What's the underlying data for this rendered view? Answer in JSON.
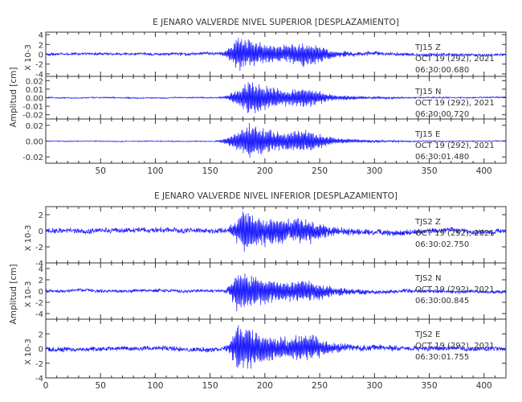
{
  "chart_data": [
    {
      "type": "line",
      "title": "E JENARO VALVERDE NIVEL SUPERIOR [DESPLAZAMIENTO]",
      "ylabel": "Amplitud [cm]",
      "xlim": [
        0,
        420
      ],
      "xticks": [
        "50",
        "100",
        "150",
        "200",
        "250",
        "300",
        "350",
        "400"
      ],
      "color": "#1c1cff",
      "grid": false,
      "traces": [
        {
          "station": "TJ15",
          "component": "Z",
          "date": "OCT 19 (292), 2021",
          "time": "06:30:00.680",
          "exponent": "X 10-3",
          "ylim": [
            -4.5,
            4.5
          ],
          "yticks": [
            "4",
            "2",
            "0",
            "-2",
            "-4"
          ],
          "envelope": {
            "onset": 155,
            "peak": 175,
            "peak_amp": 3.8,
            "noise": 0.3,
            "coda": 45,
            "secondary": {
              "center": 238,
              "amp": 1.5,
              "width": 18
            }
          }
        },
        {
          "station": "TJ15",
          "component": "N",
          "date": "OCT 19 (292), 2021",
          "time": "06:30:00.720",
          "exponent": "",
          "ylim": [
            -0.025,
            0.025
          ],
          "yticks": [
            "0.02",
            "0.01",
            "0.00",
            "-0.01",
            "-0.02"
          ],
          "envelope": {
            "onset": 155,
            "peak": 185,
            "peak_amp": 0.022,
            "noise": 0.0008,
            "coda": 40,
            "secondary": {
              "center": 240,
              "amp": 0.006,
              "width": 15
            }
          }
        },
        {
          "station": "TJ15",
          "component": "E",
          "date": "OCT 19 (292), 2021",
          "time": "06:30:01.480",
          "exponent": "",
          "ylim": [
            -0.028,
            0.028
          ],
          "yticks": [
            "0.02",
            "0.00",
            "-0.02"
          ],
          "envelope": {
            "onset": 150,
            "peak": 185,
            "peak_amp": 0.024,
            "noise": 0.0006,
            "coda": 40,
            "secondary": {
              "center": 238,
              "amp": 0.008,
              "width": 18
            }
          }
        }
      ]
    },
    {
      "type": "line",
      "title": "E JENARO VALVERDE NIVEL INFERIOR [DESPLAZAMIENTO]",
      "ylabel": "Amplitud [cm]",
      "xlim": [
        0,
        420
      ],
      "xticks": [
        "0",
        "50",
        "100",
        "150",
        "200",
        "250",
        "300",
        "350",
        "400"
      ],
      "color": "#1c1cff",
      "grid": false,
      "traces": [
        {
          "station": "TJS2",
          "component": "Z",
          "date": "OCT 19 (292), 2021",
          "time": "06:30:02.750",
          "exponent": "X 10-3",
          "ylim": [
            -4,
            3
          ],
          "yticks": [
            "2",
            "0",
            "-2",
            "-4"
          ],
          "envelope": {
            "onset": 160,
            "peak": 180,
            "peak_amp": 3.0,
            "noise": 0.35,
            "coda": 40,
            "secondary": {
              "center": 235,
              "amp": 0.8,
              "width": 20
            }
          }
        },
        {
          "station": "TJS2",
          "component": "N",
          "date": "OCT 19 (292), 2021",
          "time": "06:30:00.845",
          "exponent": "X 10-3",
          "ylim": [
            -5,
            5
          ],
          "yticks": [
            "4",
            "2",
            "0",
            "-2",
            "-4"
          ],
          "envelope": {
            "onset": 160,
            "peak": 175,
            "peak_amp": 4.0,
            "noise": 0.3,
            "coda": 45,
            "secondary": {
              "center": 240,
              "amp": 1.0,
              "width": 20
            }
          }
        },
        {
          "station": "TJS2",
          "component": "E",
          "date": "OCT 19 (292), 2021",
          "time": "06:30:01.755",
          "exponent": "X 10-3",
          "ylim": [
            -4,
            4
          ],
          "yticks": [
            "2",
            "0",
            "-2",
            "-4"
          ],
          "envelope": {
            "onset": 160,
            "peak": 175,
            "peak_amp": 3.8,
            "noise": 0.35,
            "coda": 40,
            "secondary": {
              "center": 240,
              "amp": 1.0,
              "width": 20
            }
          }
        }
      ]
    }
  ]
}
